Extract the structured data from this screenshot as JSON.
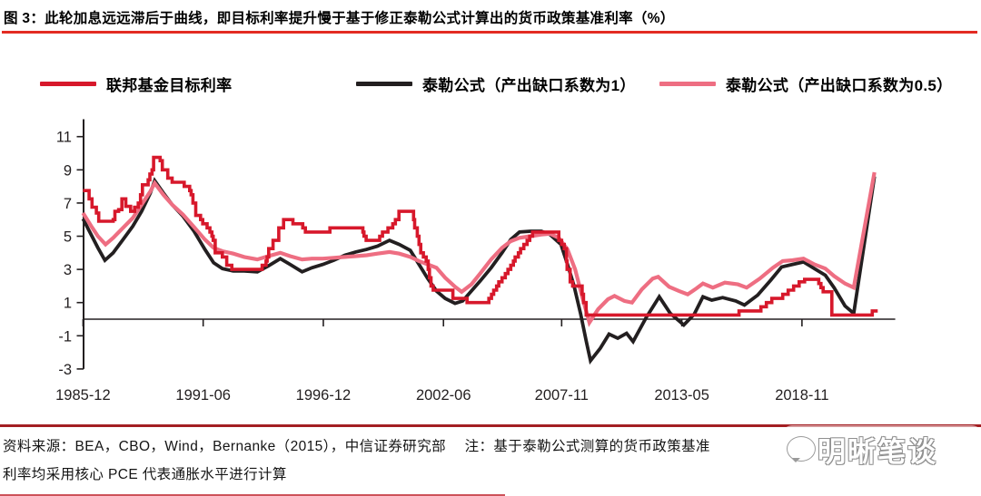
{
  "title": {
    "text": "图 3：此轮加息远远滞后于曲线，即目标利率提升慢于基于修正泰勒公式计算出的货币政策基准利率（%）"
  },
  "colors": {
    "red": "#d7182b",
    "black": "#231f20",
    "pink": "#ee6e82",
    "title_underline": "#e32b22",
    "source_rule": "#a31e22",
    "bottom_rule": "#c4343c",
    "axis": "#231f20",
    "tick_text": "#231f20"
  },
  "legend": {
    "items": [
      {
        "label": "联邦基金目标利率",
        "color_key": "red"
      },
      {
        "label": "泰勒公式（产出缺口系数为1）",
        "color_key": "black"
      },
      {
        "label": "泰勒公式（产出缺口系数为0.5）",
        "color_key": "pink"
      }
    ]
  },
  "source": {
    "line1": "资料来源：BEA，CBO，Wind，Bernanke（2015），中信证券研究部　 注：基于泰勒公式测算的货币政策基准",
    "line2": "利率均采用核心 PCE 代表通胀水平进行计算"
  },
  "watermark": {
    "text": "明晰笔谈"
  },
  "chart_data": {
    "type": "line",
    "title": "此轮加息远远滞后于曲线，即目标利率提升慢于基于修正泰勒公式计算出的货币政策基准利率（%）",
    "xlabel": "",
    "ylabel": "",
    "unit": "%",
    "grid": false,
    "legend_position": "top",
    "y_axis": {
      "ticks": [
        11,
        9,
        7,
        5,
        3,
        1,
        -1,
        -3
      ],
      "range": [
        -3,
        12
      ]
    },
    "x_axis": {
      "range": [
        1985.92,
        2023.1
      ],
      "ticks": [
        {
          "label": "1985-12",
          "t": 1985.92
        },
        {
          "label": "1991-06",
          "t": 1991.42
        },
        {
          "label": "1996-12",
          "t": 1996.92
        },
        {
          "label": "2002-06",
          "t": 2002.42
        },
        {
          "label": "2007-11",
          "t": 2007.83
        },
        {
          "label": "2013-05",
          "t": 2013.33
        },
        {
          "label": "2018-11",
          "t": 2018.83
        }
      ]
    },
    "series": [
      {
        "name": "泰勒公式（产出缺口系数为1）",
        "color_key": "black",
        "style": "line",
        "width": 3.8,
        "points": [
          [
            1985.92,
            6.05
          ],
          [
            1986.25,
            5.2
          ],
          [
            1986.6,
            4.3
          ],
          [
            1986.92,
            3.55
          ],
          [
            1987.3,
            4.0
          ],
          [
            1987.75,
            4.8
          ],
          [
            1988.2,
            5.6
          ],
          [
            1988.6,
            6.5
          ],
          [
            1989.0,
            7.6
          ],
          [
            1989.2,
            8.35
          ],
          [
            1989.6,
            7.6
          ],
          [
            1990.0,
            6.9
          ],
          [
            1990.5,
            6.2
          ],
          [
            1991.0,
            5.3
          ],
          [
            1991.5,
            4.2
          ],
          [
            1991.9,
            3.4
          ],
          [
            1992.3,
            3.05
          ],
          [
            1992.8,
            2.9
          ],
          [
            1993.3,
            2.9
          ],
          [
            1993.9,
            2.85
          ],
          [
            1994.4,
            3.2
          ],
          [
            1994.95,
            3.65
          ],
          [
            1995.4,
            3.3
          ],
          [
            1995.95,
            2.85
          ],
          [
            1996.4,
            3.1
          ],
          [
            1996.9,
            3.3
          ],
          [
            1997.4,
            3.55
          ],
          [
            1997.9,
            3.85
          ],
          [
            1998.4,
            4.05
          ],
          [
            1998.9,
            4.2
          ],
          [
            1999.4,
            4.4
          ],
          [
            1999.95,
            4.75
          ],
          [
            2000.4,
            4.5
          ],
          [
            2000.9,
            4.15
          ],
          [
            2001.3,
            3.3
          ],
          [
            2001.7,
            2.45
          ],
          [
            2002.1,
            1.7
          ],
          [
            2002.5,
            1.25
          ],
          [
            2002.95,
            0.95
          ],
          [
            2003.3,
            1.1
          ],
          [
            2003.7,
            1.7
          ],
          [
            2004.1,
            2.3
          ],
          [
            2004.6,
            3.1
          ],
          [
            2005.1,
            4.0
          ],
          [
            2005.5,
            4.8
          ],
          [
            2005.9,
            5.25
          ],
          [
            2006.4,
            5.3
          ],
          [
            2006.9,
            5.3
          ],
          [
            2007.3,
            5.1
          ],
          [
            2007.8,
            4.5
          ],
          [
            2008.1,
            3.3
          ],
          [
            2008.4,
            2.0
          ],
          [
            2008.7,
            0.3
          ],
          [
            2008.95,
            -1.3
          ],
          [
            2009.15,
            -2.5
          ],
          [
            2009.6,
            -1.75
          ],
          [
            2010.0,
            -0.9
          ],
          [
            2010.4,
            -1.15
          ],
          [
            2010.8,
            -0.85
          ],
          [
            2011.1,
            -1.35
          ],
          [
            2011.7,
            0.1
          ],
          [
            2012.3,
            1.35
          ],
          [
            2012.8,
            0.35
          ],
          [
            2013.2,
            -0.1
          ],
          [
            2013.42,
            -0.35
          ],
          [
            2013.9,
            0.3
          ],
          [
            2014.3,
            1.35
          ],
          [
            2014.7,
            1.15
          ],
          [
            2015.2,
            1.3
          ],
          [
            2015.8,
            1.1
          ],
          [
            2016.2,
            0.85
          ],
          [
            2016.8,
            1.45
          ],
          [
            2017.4,
            2.35
          ],
          [
            2017.9,
            3.15
          ],
          [
            2018.4,
            3.3
          ],
          [
            2018.9,
            3.45
          ],
          [
            2019.4,
            3.05
          ],
          [
            2019.9,
            2.65
          ],
          [
            2020.3,
            1.9
          ],
          [
            2020.8,
            0.8
          ],
          [
            2021.2,
            0.35
          ],
          [
            2022.15,
            8.6
          ]
        ]
      },
      {
        "name": "泰勒公式（产出缺口系数为0.5）",
        "color_key": "pink",
        "style": "line",
        "width": 4.2,
        "points": [
          [
            1985.92,
            6.4
          ],
          [
            1986.3,
            5.6
          ],
          [
            1986.6,
            5.0
          ],
          [
            1986.95,
            4.5
          ],
          [
            1987.3,
            4.9
          ],
          [
            1987.75,
            5.5
          ],
          [
            1988.2,
            6.1
          ],
          [
            1988.6,
            6.9
          ],
          [
            1989.0,
            7.7
          ],
          [
            1989.2,
            8.2
          ],
          [
            1989.6,
            7.5
          ],
          [
            1990.0,
            6.9
          ],
          [
            1990.5,
            6.3
          ],
          [
            1991.0,
            5.55
          ],
          [
            1991.5,
            4.8
          ],
          [
            1991.9,
            4.3
          ],
          [
            1992.3,
            4.1
          ],
          [
            1992.8,
            3.95
          ],
          [
            1993.3,
            3.75
          ],
          [
            1993.9,
            3.6
          ],
          [
            1994.4,
            3.8
          ],
          [
            1994.95,
            4.0
          ],
          [
            1995.4,
            3.8
          ],
          [
            1995.95,
            3.6
          ],
          [
            1996.4,
            3.65
          ],
          [
            1996.9,
            3.65
          ],
          [
            1997.4,
            3.7
          ],
          [
            1997.9,
            3.75
          ],
          [
            1998.4,
            3.8
          ],
          [
            1998.9,
            3.85
          ],
          [
            1999.4,
            3.95
          ],
          [
            1999.95,
            4.05
          ],
          [
            2000.4,
            3.95
          ],
          [
            2000.9,
            3.75
          ],
          [
            2001.3,
            3.5
          ],
          [
            2001.7,
            3.3
          ],
          [
            2002.1,
            3.1
          ],
          [
            2002.5,
            2.5
          ],
          [
            2002.95,
            1.95
          ],
          [
            2003.25,
            1.65
          ],
          [
            2003.7,
            2.1
          ],
          [
            2004.1,
            2.75
          ],
          [
            2004.6,
            3.6
          ],
          [
            2005.1,
            4.3
          ],
          [
            2005.5,
            4.7
          ],
          [
            2005.9,
            4.9
          ],
          [
            2006.4,
            5.0
          ],
          [
            2006.9,
            5.1
          ],
          [
            2007.3,
            5.15
          ],
          [
            2007.7,
            4.9
          ],
          [
            2008.1,
            4.2
          ],
          [
            2008.45,
            3.0
          ],
          [
            2008.8,
            1.2
          ],
          [
            2009.1,
            -0.2
          ],
          [
            2009.5,
            0.6
          ],
          [
            2009.95,
            1.2
          ],
          [
            2010.25,
            1.4
          ],
          [
            2010.7,
            1.1
          ],
          [
            2011.05,
            1.0
          ],
          [
            2011.5,
            1.8
          ],
          [
            2012.0,
            2.45
          ],
          [
            2012.25,
            2.55
          ],
          [
            2012.75,
            1.95
          ],
          [
            2013.2,
            1.7
          ],
          [
            2013.6,
            1.5
          ],
          [
            2014.0,
            1.85
          ],
          [
            2014.3,
            2.15
          ],
          [
            2014.75,
            1.9
          ],
          [
            2015.3,
            2.2
          ],
          [
            2015.9,
            2.1
          ],
          [
            2016.3,
            1.9
          ],
          [
            2016.9,
            2.45
          ],
          [
            2017.5,
            3.1
          ],
          [
            2017.95,
            3.5
          ],
          [
            2018.4,
            3.55
          ],
          [
            2018.9,
            3.65
          ],
          [
            2019.4,
            3.3
          ],
          [
            2019.9,
            3.05
          ],
          [
            2020.3,
            2.6
          ],
          [
            2020.8,
            2.15
          ],
          [
            2021.2,
            1.9
          ],
          [
            2022.15,
            8.85
          ]
        ]
      },
      {
        "name": "联邦基金目标利率",
        "color_key": "red",
        "style": "step",
        "width": 3.6,
        "points": [
          [
            1985.92,
            7.75
          ],
          [
            1986.2,
            7.25
          ],
          [
            1986.33,
            6.75
          ],
          [
            1986.53,
            6.4
          ],
          [
            1986.64,
            5.9
          ],
          [
            1987.3,
            6.0
          ],
          [
            1987.38,
            6.5
          ],
          [
            1987.55,
            6.6
          ],
          [
            1987.7,
            7.25
          ],
          [
            1987.88,
            6.8
          ],
          [
            1988.1,
            6.5
          ],
          [
            1988.28,
            6.75
          ],
          [
            1988.45,
            7.0
          ],
          [
            1988.55,
            7.5
          ],
          [
            1988.64,
            8.1
          ],
          [
            1988.9,
            8.4
          ],
          [
            1988.98,
            8.75
          ],
          [
            1989.08,
            9.0
          ],
          [
            1989.15,
            9.75
          ],
          [
            1989.45,
            9.55
          ],
          [
            1989.55,
            9.0
          ],
          [
            1989.8,
            8.5
          ],
          [
            1990.0,
            8.25
          ],
          [
            1990.55,
            8.0
          ],
          [
            1990.8,
            7.75
          ],
          [
            1990.87,
            7.5
          ],
          [
            1990.95,
            7.0
          ],
          [
            1991.08,
            6.25
          ],
          [
            1991.3,
            6.0
          ],
          [
            1991.4,
            5.75
          ],
          [
            1991.6,
            5.5
          ],
          [
            1991.73,
            5.25
          ],
          [
            1991.82,
            5.0
          ],
          [
            1991.88,
            4.75
          ],
          [
            1991.97,
            4.0
          ],
          [
            1992.3,
            3.75
          ],
          [
            1992.5,
            3.25
          ],
          [
            1992.73,
            3.0
          ],
          [
            1994.12,
            3.25
          ],
          [
            1994.3,
            3.5
          ],
          [
            1994.35,
            3.75
          ],
          [
            1994.42,
            4.25
          ],
          [
            1994.62,
            4.75
          ],
          [
            1994.88,
            5.5
          ],
          [
            1995.1,
            6.0
          ],
          [
            1995.53,
            5.75
          ],
          [
            1995.98,
            5.5
          ],
          [
            1996.1,
            5.25
          ],
          [
            1997.22,
            5.5
          ],
          [
            1998.73,
            5.25
          ],
          [
            1998.78,
            5.0
          ],
          [
            1998.88,
            4.75
          ],
          [
            1999.5,
            5.0
          ],
          [
            1999.63,
            5.25
          ],
          [
            1999.88,
            5.5
          ],
          [
            2000.1,
            5.75
          ],
          [
            2000.22,
            6.0
          ],
          [
            2000.38,
            6.5
          ],
          [
            2001.05,
            6.0
          ],
          [
            2001.1,
            5.5
          ],
          [
            2001.22,
            5.0
          ],
          [
            2001.3,
            4.5
          ],
          [
            2001.38,
            4.0
          ],
          [
            2001.5,
            3.75
          ],
          [
            2001.63,
            3.5
          ],
          [
            2001.72,
            3.0
          ],
          [
            2001.78,
            2.5
          ],
          [
            2001.85,
            2.0
          ],
          [
            2001.95,
            1.75
          ],
          [
            2002.85,
            1.25
          ],
          [
            2003.5,
            1.0
          ],
          [
            2004.5,
            1.25
          ],
          [
            2004.62,
            1.5
          ],
          [
            2004.72,
            1.75
          ],
          [
            2004.85,
            2.0
          ],
          [
            2004.95,
            2.25
          ],
          [
            2005.1,
            2.5
          ],
          [
            2005.25,
            2.75
          ],
          [
            2005.37,
            3.0
          ],
          [
            2005.5,
            3.25
          ],
          [
            2005.62,
            3.5
          ],
          [
            2005.7,
            3.75
          ],
          [
            2005.85,
            4.0
          ],
          [
            2005.95,
            4.25
          ],
          [
            2006.1,
            4.5
          ],
          [
            2006.25,
            4.75
          ],
          [
            2006.37,
            5.0
          ],
          [
            2006.5,
            5.25
          ],
          [
            2007.7,
            4.75
          ],
          [
            2007.83,
            4.5
          ],
          [
            2007.95,
            4.25
          ],
          [
            2008.05,
            3.5
          ],
          [
            2008.08,
            3.0
          ],
          [
            2008.22,
            2.25
          ],
          [
            2008.33,
            2.0
          ],
          [
            2008.77,
            1.5
          ],
          [
            2008.83,
            1.0
          ],
          [
            2008.95,
            0.25
          ],
          [
            2015.95,
            0.5
          ],
          [
            2016.95,
            0.75
          ],
          [
            2017.2,
            1.0
          ],
          [
            2017.45,
            1.25
          ],
          [
            2017.95,
            1.5
          ],
          [
            2018.2,
            1.75
          ],
          [
            2018.45,
            2.0
          ],
          [
            2018.7,
            2.25
          ],
          [
            2018.95,
            2.4
          ],
          [
            2019.6,
            2.15
          ],
          [
            2019.7,
            1.9
          ],
          [
            2019.8,
            1.65
          ],
          [
            2020.2,
            0.25
          ],
          [
            2022.05,
            0.5
          ],
          [
            2022.3,
            0.5
          ]
        ]
      }
    ]
  }
}
